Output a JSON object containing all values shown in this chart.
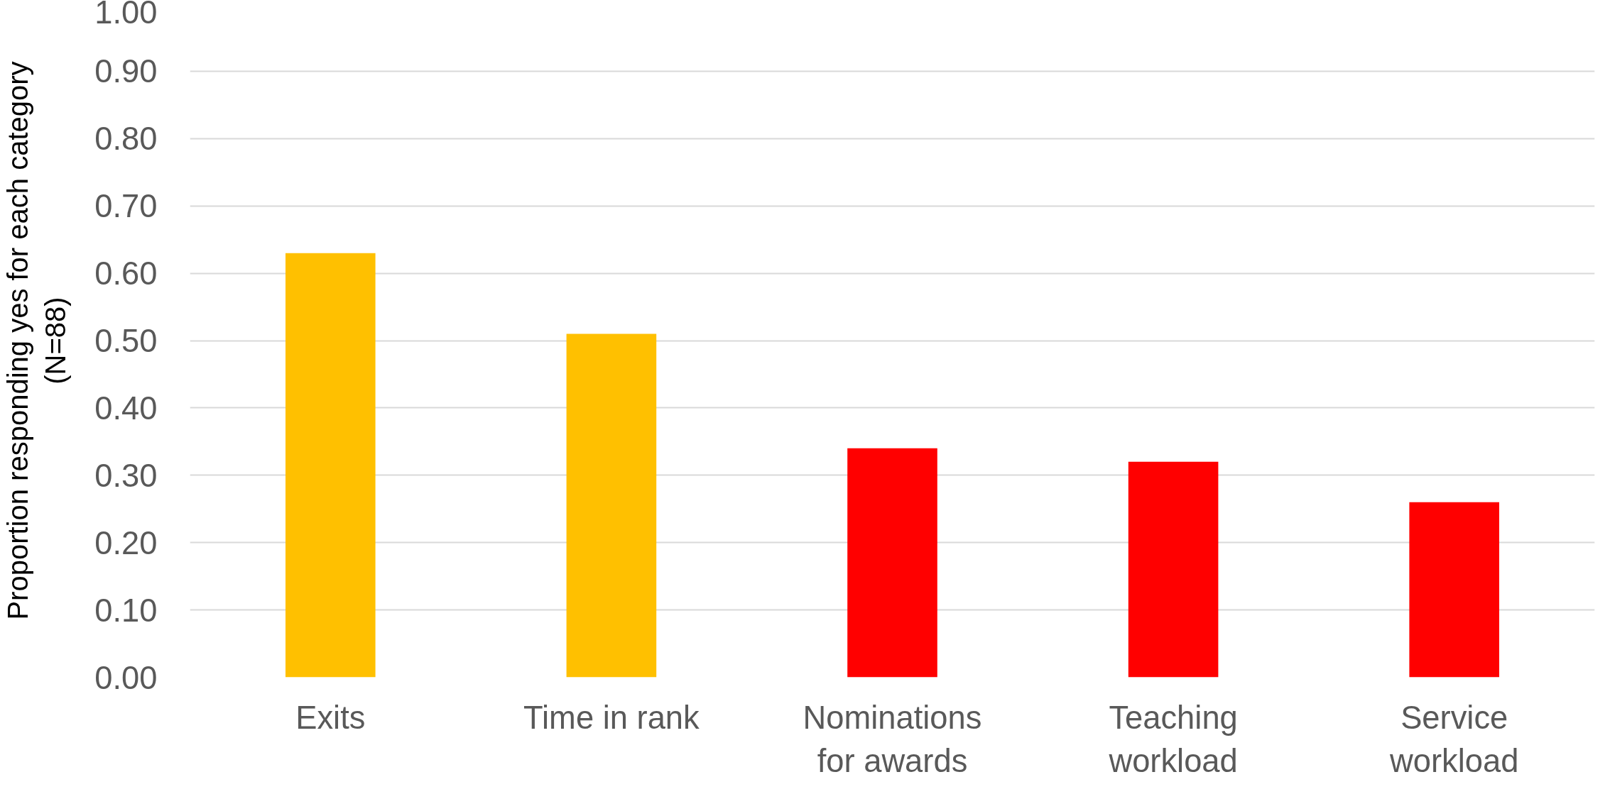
{
  "chart_data": {
    "type": "bar",
    "ylabel": "Proportion responding yes for each category\n(N=88)",
    "categories": [
      "Exits",
      "Time in rank",
      "Nominations\nfor awards",
      "Teaching\nworkload",
      "Service\nworkload"
    ],
    "values": [
      0.63,
      0.51,
      0.34,
      0.32,
      0.26
    ],
    "colors": [
      "#ffc000",
      "#ffc000",
      "#ff0000",
      "#ff0000",
      "#ff0000"
    ],
    "ylim": [
      0,
      1.0
    ],
    "yticks": [
      {
        "value": 0,
        "label": "0.00"
      },
      {
        "value": 0.1,
        "label": "0.10"
      },
      {
        "value": 0.2,
        "label": "0.20"
      },
      {
        "value": 0.3,
        "label": "0.30"
      },
      {
        "value": 0.4,
        "label": "0.40"
      },
      {
        "value": 0.5,
        "label": "0.50"
      },
      {
        "value": 0.6,
        "label": "0.60"
      },
      {
        "value": 0.7,
        "label": "0.70"
      },
      {
        "value": 0.8,
        "label": "0.80"
      },
      {
        "value": 0.9,
        "label": "0.90"
      },
      {
        "value": 1.0,
        "label": "1.00"
      }
    ],
    "grid": "y"
  }
}
